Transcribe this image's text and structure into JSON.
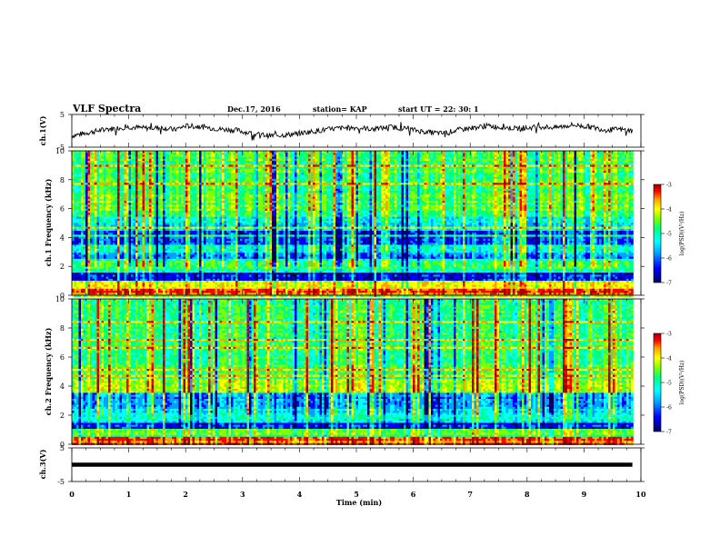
{
  "header": {
    "title": "VLF Spectra",
    "date": "Dec.17, 2016",
    "station": "station= KAP",
    "start": "start  UT =   22: 30: 1"
  },
  "chart_data": [
    {
      "type": "line",
      "name": "ch1-waveform",
      "ylabel": "ch.1(V)",
      "ylim": [
        -5,
        5
      ],
      "yticks": [
        "5",
        "-5"
      ],
      "xlim": [
        0,
        10
      ],
      "x_end": 9.85,
      "approx_values": [
        [
          0.0,
          -1.5
        ],
        [
          0.3,
          -0.5
        ],
        [
          0.6,
          0.5
        ],
        [
          1.0,
          1.2
        ],
        [
          1.3,
          0.8
        ],
        [
          1.6,
          1.0
        ],
        [
          1.8,
          0.3
        ],
        [
          2.0,
          1.5
        ],
        [
          2.3,
          1.2
        ],
        [
          2.6,
          0.5
        ],
        [
          2.9,
          0.2
        ],
        [
          3.2,
          -1.0
        ],
        [
          3.5,
          -1.5
        ],
        [
          3.8,
          -1.2
        ],
        [
          4.1,
          -0.5
        ],
        [
          4.4,
          0.2
        ],
        [
          4.7,
          0.8
        ],
        [
          5.0,
          1.0
        ],
        [
          5.3,
          0.5
        ],
        [
          5.6,
          1.2
        ],
        [
          5.9,
          0.6
        ],
        [
          6.2,
          -0.3
        ],
        [
          6.5,
          -0.8
        ],
        [
          6.8,
          0.3
        ],
        [
          7.0,
          0.8
        ],
        [
          7.3,
          1.5
        ],
        [
          7.6,
          1.0
        ],
        [
          7.9,
          0.6
        ],
        [
          8.2,
          1.3
        ],
        [
          8.5,
          1.0
        ],
        [
          8.8,
          1.8
        ],
        [
          9.1,
          1.2
        ],
        [
          9.4,
          0.2
        ],
        [
          9.6,
          0.5
        ],
        [
          9.85,
          0.0
        ]
      ]
    },
    {
      "type": "heatmap",
      "name": "ch1-spectrogram",
      "ylabel": "ch.1 Frequency (kHz)",
      "ylim": [
        0,
        10
      ],
      "yticks": [
        "0",
        "2",
        "4",
        "6",
        "8",
        "10"
      ],
      "xlim": [
        0,
        10
      ],
      "x_end": 9.85,
      "colorbar": {
        "label": "log(PSD)(V²/Hz)",
        "range": [
          -7,
          -3
        ],
        "ticks": [
          "-3",
          "-4",
          "-5",
          "-6",
          "-7"
        ]
      },
      "approx_band_level_log_psd": [
        {
          "band_khz": [
            0.0,
            0.5
          ],
          "level": -3.8
        },
        {
          "band_khz": [
            0.5,
            1.0
          ],
          "level": -4.3
        },
        {
          "band_khz": [
            1.0,
            1.5
          ],
          "level": -6.5
        },
        {
          "band_khz": [
            1.5,
            2.5
          ],
          "level": -5.2
        },
        {
          "band_khz": [
            2.5,
            3.0
          ],
          "level": -6.0
        },
        {
          "band_khz": [
            3.0,
            3.5
          ],
          "level": -5.4
        },
        {
          "band_khz": [
            3.5,
            4.5
          ],
          "level": -6.2
        },
        {
          "band_khz": [
            4.5,
            5.5
          ],
          "level": -5.6
        },
        {
          "band_khz": [
            5.5,
            10.0
          ],
          "level": -5.0
        }
      ]
    },
    {
      "type": "heatmap",
      "name": "ch2-spectrogram",
      "ylabel": "ch.2 Frequency (kHz)",
      "ylim": [
        0,
        10
      ],
      "yticks": [
        "0",
        "2",
        "4",
        "6",
        "8",
        "10"
      ],
      "xlim": [
        0,
        10
      ],
      "x_end": 9.85,
      "colorbar": {
        "label": "log(PSD)(V²/Hz)",
        "range": [
          -7,
          -3
        ],
        "ticks": [
          "-3",
          "-4",
          "-5",
          "-6",
          "-7"
        ]
      },
      "approx_band_level_log_psd": [
        {
          "band_khz": [
            0.0,
            0.5
          ],
          "level": -3.8
        },
        {
          "band_khz": [
            0.5,
            1.0
          ],
          "level": -5.0
        },
        {
          "band_khz": [
            1.0,
            1.5
          ],
          "level": -6.4
        },
        {
          "band_khz": [
            1.5,
            2.5
          ],
          "level": -5.6
        },
        {
          "band_khz": [
            2.5,
            3.5
          ],
          "level": -6.0
        },
        {
          "band_khz": [
            3.5,
            4.5
          ],
          "level": -4.7
        },
        {
          "band_khz": [
            4.5,
            10.0
          ],
          "level": -5.1
        }
      ]
    },
    {
      "type": "line",
      "name": "ch3-waveform",
      "ylabel": "ch.3(V)",
      "ylim": [
        -5,
        5
      ],
      "yticks": [
        "5",
        "-5"
      ],
      "xlim": [
        0,
        10
      ],
      "x_end": 9.85,
      "approx_values": [
        [
          0.0,
          0.0
        ],
        [
          9.85,
          0.0
        ]
      ]
    }
  ],
  "x_axis": {
    "label": "Time  (min)",
    "ticks": [
      "0",
      "1",
      "2",
      "3",
      "4",
      "5",
      "6",
      "7",
      "8",
      "9",
      "10"
    ]
  },
  "colors": {
    "scale": [
      "#000060",
      "#0000ff",
      "#00a0ff",
      "#00ffff",
      "#00ff80",
      "#80ff00",
      "#ffff00",
      "#ffa000",
      "#ff0000",
      "#a00000"
    ]
  }
}
